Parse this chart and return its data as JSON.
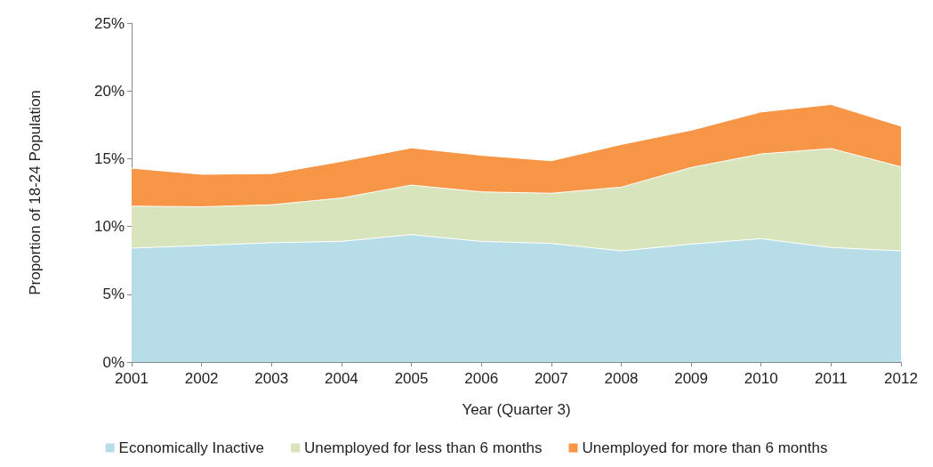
{
  "chart_data": {
    "type": "area",
    "stacked": true,
    "xlabel": "Year (Quarter 3)",
    "ylabel": "Proportion of 18-24 Population",
    "categories": [
      "2001",
      "2002",
      "2003",
      "2004",
      "2005",
      "2006",
      "2007",
      "2008",
      "2009",
      "2010",
      "2011",
      "2012"
    ],
    "series": [
      {
        "name": "Economically Inactive",
        "color": "#b7dde8",
        "values": [
          8.4,
          8.6,
          8.8,
          8.9,
          9.4,
          8.9,
          8.75,
          8.2,
          8.7,
          9.1,
          8.45,
          8.2
        ]
      },
      {
        "name": "Unemployed for less than 6 months",
        "color": "#d8e4bc",
        "values": [
          3.1,
          2.85,
          2.8,
          3.2,
          3.65,
          3.65,
          3.7,
          4.7,
          5.65,
          6.25,
          7.3,
          6.2
        ]
      },
      {
        "name": "Unemployed for more than 6 months",
        "color": "#f79646",
        "values": [
          2.8,
          2.4,
          2.3,
          2.7,
          2.75,
          2.7,
          2.4,
          3.15,
          2.75,
          3.1,
          3.25,
          3.0
        ]
      }
    ],
    "ylim": [
      0,
      25
    ],
    "yticks": [
      {
        "value": 0,
        "label": "0%"
      },
      {
        "value": 5,
        "label": "5%"
      },
      {
        "value": 10,
        "label": "10%"
      },
      {
        "value": 15,
        "label": "15%"
      },
      {
        "value": 20,
        "label": "20%"
      },
      {
        "value": 25,
        "label": "25%"
      }
    ],
    "grid": false,
    "legend": "bottom"
  }
}
